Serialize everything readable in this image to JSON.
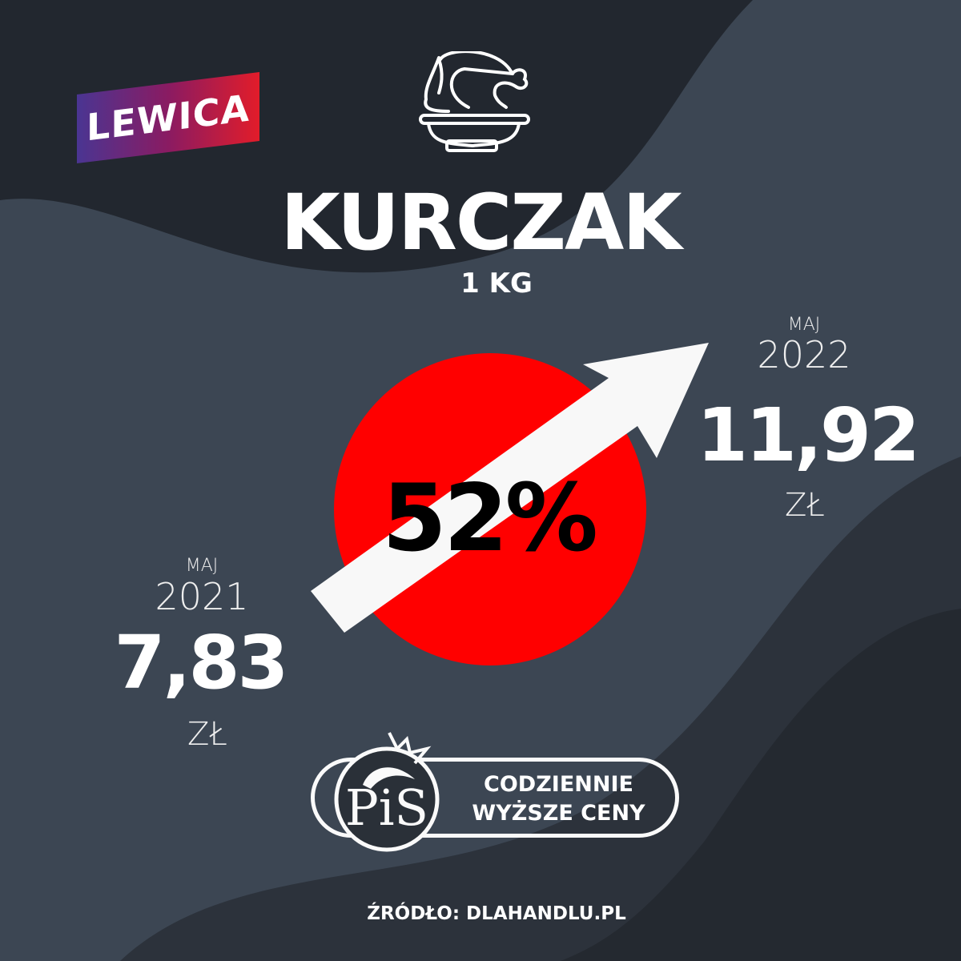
{
  "brand_badge": "LEWICA",
  "icon": "roast-chicken-on-plate-icon",
  "product": {
    "name": "KURCZAK",
    "unit": "1 KG"
  },
  "change": {
    "percent": "52%"
  },
  "before": {
    "month": "MAJ",
    "year": "2021",
    "price": "7,83",
    "currency": "ZŁ"
  },
  "after": {
    "month": "MAJ",
    "year": "2022",
    "price": "11,92",
    "currency": "ZŁ"
  },
  "footer_badge": {
    "logo": "PiS",
    "slogan_line1": "CODZIENNIE",
    "slogan_line2": "WYŻSZE CENY"
  },
  "source": "ŹRÓDŁO: DLAHANDLU.PL",
  "colors": {
    "background": "#22272f",
    "wave": "#3c4653",
    "circle": "#ff0000",
    "arrow": "#f8f8f8"
  }
}
